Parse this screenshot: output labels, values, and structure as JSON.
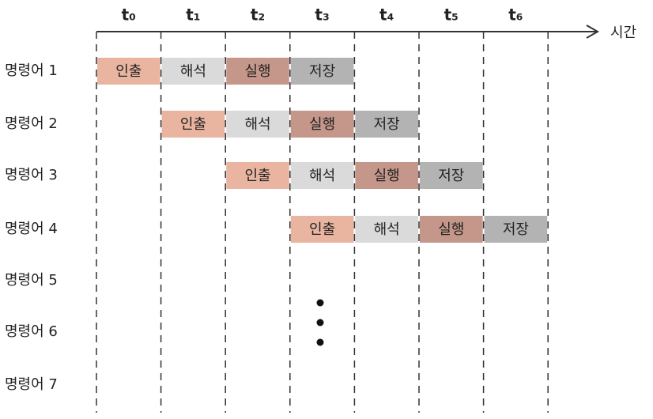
{
  "axis_label": "시간",
  "time_labels": [
    "t₀",
    "t₁",
    "t₂",
    "t₃",
    "t₄",
    "t₅",
    "t₆"
  ],
  "rows": [
    {
      "label": "명령어 1",
      "cells": [
        "인출",
        "해석",
        "실행",
        "저장",
        null,
        null,
        null
      ]
    },
    {
      "label": "명령어 2",
      "cells": [
        null,
        "인출",
        "해석",
        "실행",
        "저장",
        null,
        null
      ]
    },
    {
      "label": "명령어 3",
      "cells": [
        null,
        null,
        "인출",
        "해석",
        "실행",
        "저장",
        null
      ]
    },
    {
      "label": "명령어 4",
      "cells": [
        null,
        null,
        null,
        "인출",
        "해석",
        "실행",
        "저장"
      ]
    },
    {
      "label": "명령어 5",
      "cells": [
        null,
        null,
        null,
        null,
        null,
        null,
        null
      ]
    },
    {
      "label": "명령어 6",
      "cells": [
        null,
        null,
        null,
        null,
        null,
        null,
        null
      ]
    },
    {
      "label": "명령어 7",
      "cells": [
        null,
        null,
        null,
        null,
        null,
        null,
        null
      ]
    }
  ]
}
